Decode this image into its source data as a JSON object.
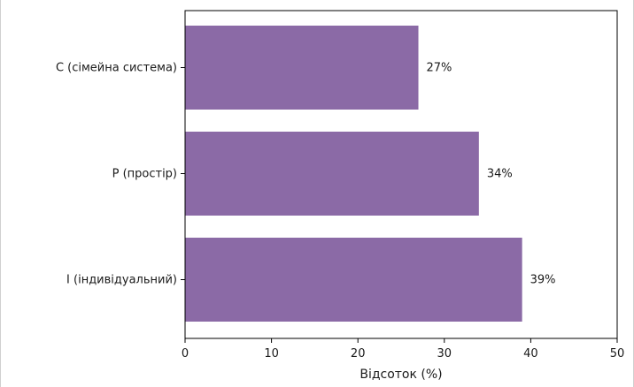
{
  "chart_data": {
    "type": "bar",
    "orientation": "horizontal",
    "categories": [
      "C (сімейна система)",
      "P (простір)",
      "I (індивідуальний)"
    ],
    "values": [
      27,
      34,
      39
    ],
    "data_labels": [
      "27%",
      "34%",
      "39%"
    ],
    "xlabel": "Відсоток (%)",
    "ylabel": "",
    "xlim": [
      0,
      50
    ],
    "xticks": [
      0,
      10,
      20,
      30,
      40,
      50
    ],
    "xtick_labels": [
      "0",
      "10",
      "20",
      "30",
      "40",
      "50"
    ],
    "bar_color": "#8b6aa6",
    "grid": false
  }
}
